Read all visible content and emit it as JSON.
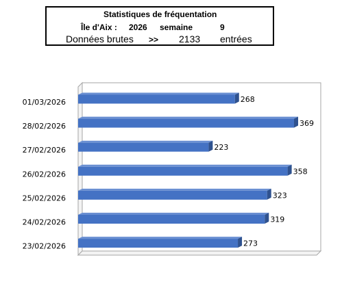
{
  "header": {
    "title": "Statistiques de  fréquentation",
    "site_label": "Île d'Aix :",
    "year": "2026",
    "week_label": "semaine",
    "week_number": "9",
    "raw_label": "Données brutes",
    "arrow": ">>",
    "total": "2133",
    "unit": "entrées"
  },
  "colors": {
    "bar_front": "#4472C4",
    "bar_side": "#2F528F",
    "bar_top": "#6A8FD2",
    "frame": "#A6A6A6"
  },
  "chart_data": {
    "type": "bar",
    "orientation": "horizontal",
    "categories": [
      "01/03/2026",
      "28/02/2026",
      "27/02/2026",
      "26/02/2026",
      "25/02/2026",
      "24/02/2026",
      "23/02/2026"
    ],
    "values": [
      268,
      369,
      223,
      358,
      323,
      319,
      273
    ],
    "xlim": [
      0,
      400
    ],
    "grid": false,
    "legend": "none",
    "data_labels": true
  }
}
